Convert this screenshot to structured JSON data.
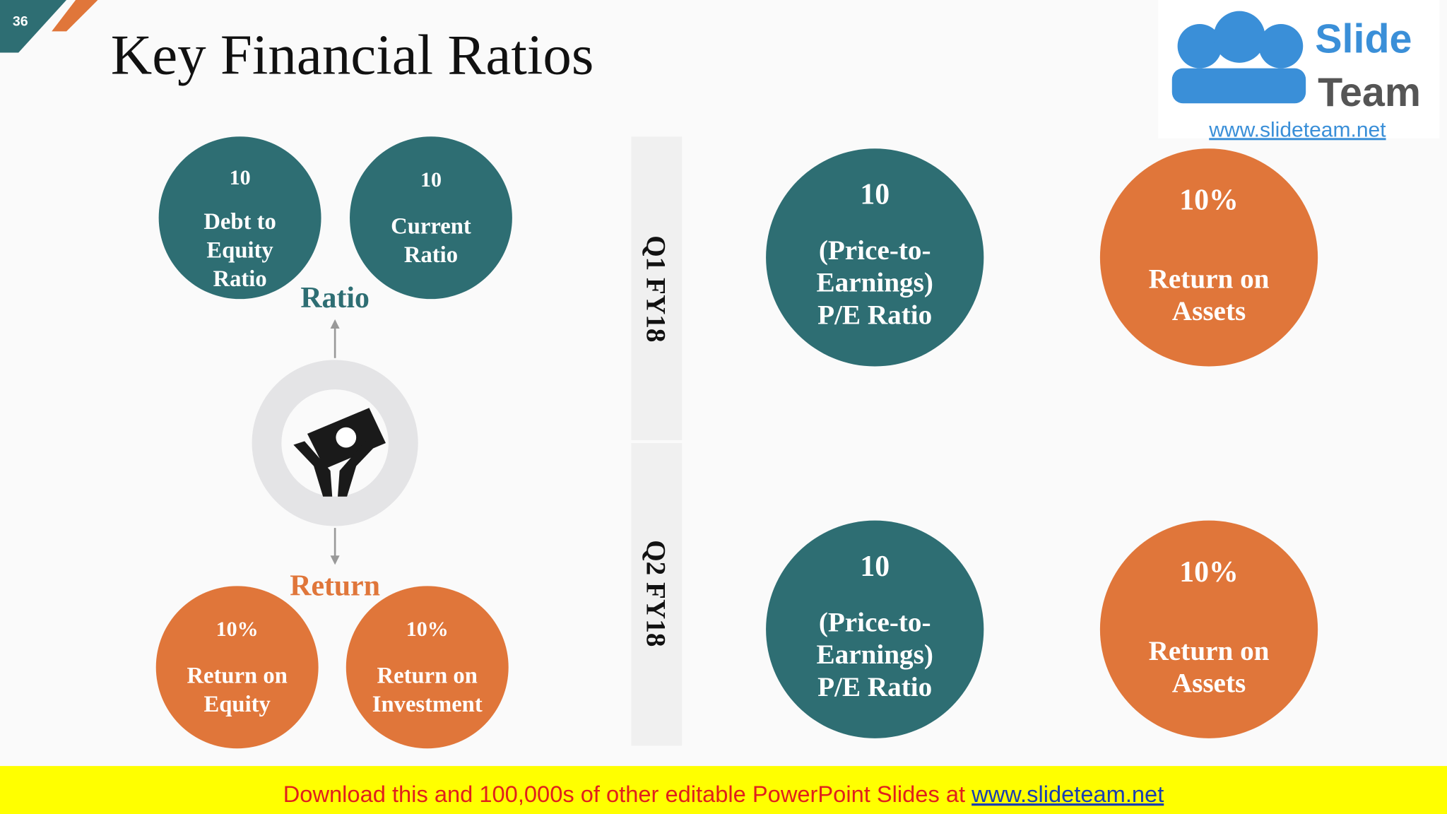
{
  "slide_number": "36",
  "title": "Key Financial Ratios",
  "logo": {
    "line1": "Slide",
    "line2": "Team",
    "url": "www.slideteam.net"
  },
  "left": {
    "ratio_label": "Ratio",
    "return_label": "Return",
    "ratio_circles": [
      {
        "value": "10",
        "label": [
          "Debt to",
          "Equity",
          "Ratio"
        ]
      },
      {
        "value": "10",
        "label": [
          "Current",
          "Ratio"
        ]
      }
    ],
    "return_circles": [
      {
        "value": "10%",
        "label": [
          "Return on",
          "Equity"
        ]
      },
      {
        "value": "10%",
        "label": [
          "Return on",
          "Investment"
        ]
      }
    ]
  },
  "quarters": [
    {
      "name": "Q1 FY18",
      "circles": [
        {
          "value": "10",
          "label": [
            "(Price-to-",
            "Earnings)",
            "P/E Ratio"
          ]
        },
        {
          "value": "10%",
          "label": [
            "Return on",
            "Assets"
          ]
        }
      ]
    },
    {
      "name": "Q2 FY18",
      "circles": [
        {
          "value": "10",
          "label": [
            "(Price-to-",
            "Earnings)",
            "P/E Ratio"
          ]
        },
        {
          "value": "10%",
          "label": [
            "Return on",
            "Assets"
          ]
        }
      ]
    }
  ],
  "banner": {
    "text": "Download this and 100,000s of other editable PowerPoint Slides at ",
    "link": "www.slideteam.net"
  }
}
